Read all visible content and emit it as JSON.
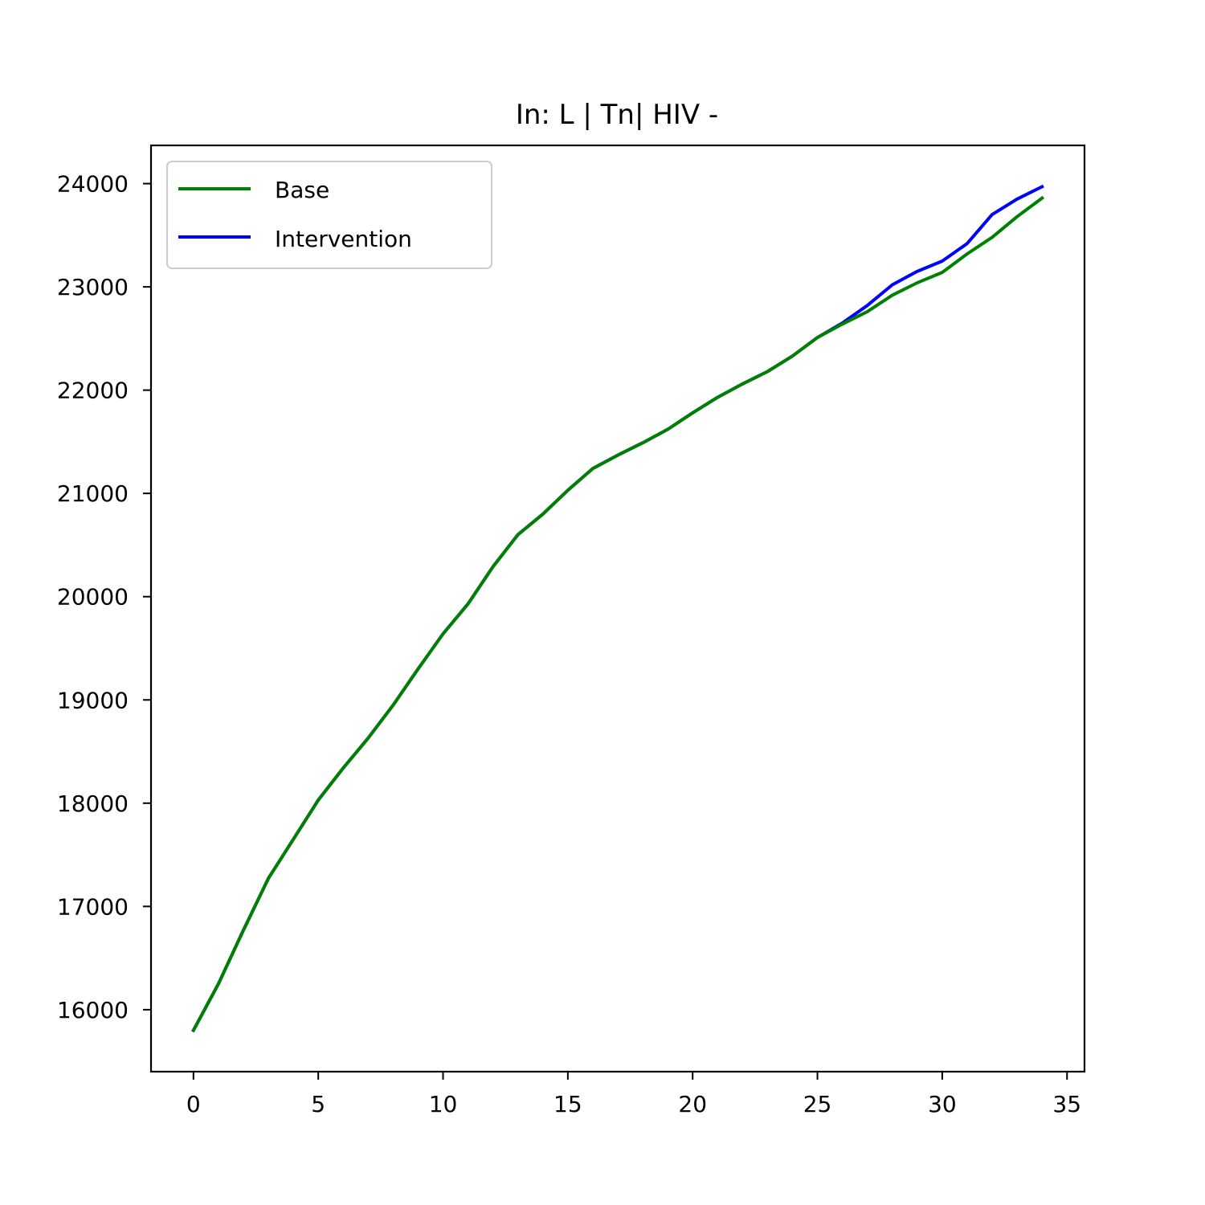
{
  "chart_data": {
    "type": "line",
    "title": "In: L | Tn| HIV -",
    "xlabel": "",
    "ylabel": "",
    "xlim": [
      -1.7,
      35.7
    ],
    "ylim": [
      15400,
      24370
    ],
    "xticks": [
      0,
      5,
      10,
      15,
      20,
      25,
      30,
      35
    ],
    "yticks": [
      16000,
      17000,
      18000,
      19000,
      20000,
      21000,
      22000,
      23000,
      24000
    ],
    "grid": false,
    "legend_position": "upper-left",
    "x": [
      0,
      1,
      2,
      3,
      4,
      5,
      6,
      7,
      8,
      9,
      10,
      11,
      12,
      13,
      14,
      15,
      16,
      17,
      18,
      19,
      20,
      21,
      22,
      23,
      24,
      25,
      26,
      27,
      28,
      29,
      30,
      31,
      32,
      33,
      34
    ],
    "series": [
      {
        "name": "Intervention",
        "color": "#0000ff",
        "values": [
          15800,
          16250,
          16770,
          17270,
          17650,
          18030,
          18340,
          18630,
          18950,
          19300,
          19640,
          19930,
          20290,
          20600,
          20800,
          21030,
          21240,
          21370,
          21490,
          21620,
          21780,
          21930,
          22060,
          22180,
          22330,
          22510,
          22650,
          22820,
          23020,
          23150,
          23250,
          23420,
          23700,
          23850,
          23970
        ]
      },
      {
        "name": "Base",
        "color": "#008000",
        "values": [
          15800,
          16250,
          16770,
          17270,
          17650,
          18030,
          18340,
          18630,
          18950,
          19300,
          19640,
          19930,
          20290,
          20600,
          20800,
          21030,
          21240,
          21370,
          21490,
          21620,
          21780,
          21930,
          22060,
          22180,
          22330,
          22510,
          22640,
          22760,
          22920,
          23040,
          23140,
          23320,
          23480,
          23680,
          23860
        ]
      }
    ],
    "legend_order": [
      "Base",
      "Intervention"
    ]
  }
}
